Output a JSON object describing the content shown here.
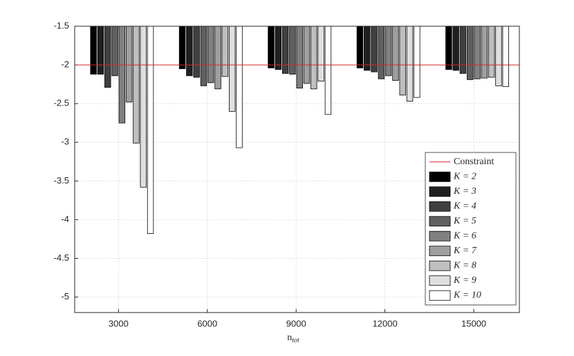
{
  "chart_data": {
    "type": "bar",
    "x": [
      3000,
      6000,
      9000,
      12000,
      15000
    ],
    "xlim": [
      1520,
      16540
    ],
    "xticks": [
      3000,
      6000,
      9000,
      12000,
      15000
    ],
    "ylim": [
      -5.2,
      -1.5
    ],
    "yticks": [
      -5,
      -4.5,
      -4,
      -3.5,
      -3,
      -2.5,
      -2,
      -1.5
    ],
    "grid": true,
    "x_label": "n",
    "x_label_subscript": "tot",
    "constraint": {
      "name": "Constraint",
      "value": -2,
      "color": "#d62728"
    },
    "legend": "lower right",
    "series": [
      {
        "name": "K = 2",
        "color": "#000000",
        "values": [
          -2.12,
          -2.05,
          -2.04,
          -2.04,
          -2.06
        ]
      },
      {
        "name": "K = 3",
        "color": "#202020",
        "values": [
          -2.12,
          -2.14,
          -2.06,
          -2.07,
          -2.07
        ]
      },
      {
        "name": "K = 4",
        "color": "#404040",
        "values": [
          -2.29,
          -2.16,
          -2.11,
          -2.09,
          -2.11
        ]
      },
      {
        "name": "K = 5",
        "color": "#606060",
        "values": [
          -2.14,
          -2.27,
          -2.12,
          -2.18,
          -2.19
        ]
      },
      {
        "name": "K = 6",
        "color": "#808080",
        "values": [
          -2.75,
          -2.23,
          -2.3,
          -2.14,
          -2.18
        ]
      },
      {
        "name": "K = 7",
        "color": "#9f9f9f",
        "values": [
          -2.48,
          -2.31,
          -2.24,
          -2.2,
          -2.17
        ]
      },
      {
        "name": "K = 8",
        "color": "#bfbfbf",
        "values": [
          -3.01,
          -2.15,
          -2.31,
          -2.39,
          -2.16
        ]
      },
      {
        "name": "K = 9",
        "color": "#dfdfdf",
        "values": [
          -3.58,
          -2.6,
          -2.21,
          -2.47,
          -2.27
        ]
      },
      {
        "name": "K = 10",
        "color": "#ffffff",
        "values": [
          -4.18,
          -3.07,
          -2.64,
          -2.42,
          -2.28
        ]
      }
    ]
  }
}
